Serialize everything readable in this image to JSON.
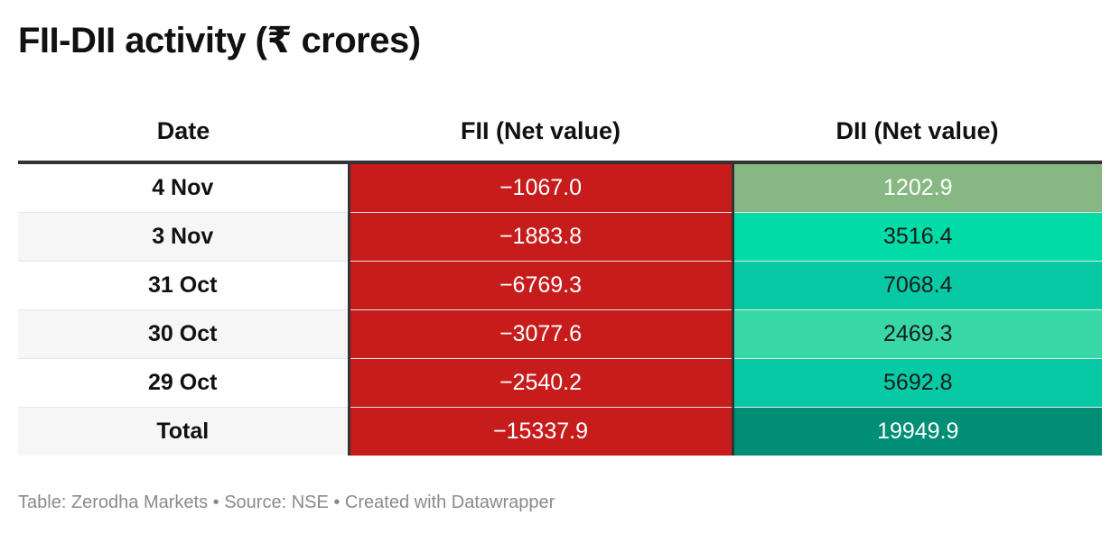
{
  "title": "FII-DII activity (₹ crores)",
  "source": "Table: Zerodha Markets • Source: NSE • Created with Datawrapper",
  "colors": {
    "fii_bg": "#c71c1c",
    "dii_light": "#87b883",
    "dii_bright": "#00dba7",
    "dii_mid": "#06caa6",
    "dii_pale": "#38d8a6",
    "dii_dark": "#008e76"
  },
  "chart_data": {
    "type": "table",
    "title": "FII-DII activity (₹ crores)",
    "columns": [
      "Date",
      "FII (Net value)",
      "DII (Net value)"
    ],
    "rows": [
      {
        "date": "4 Nov",
        "fii": "−1067.0",
        "dii": "1202.9",
        "fii_color": "#c71c1c",
        "dii_color": "#87b883",
        "dii_text": "#ffffff"
      },
      {
        "date": "3 Nov",
        "fii": "−1883.8",
        "dii": "3516.4",
        "fii_color": "#c71c1c",
        "dii_color": "#00dba7",
        "dii_text": "#1a1a1a"
      },
      {
        "date": "31 Oct",
        "fii": "−6769.3",
        "dii": "7068.4",
        "fii_color": "#c71c1c",
        "dii_color": "#06caa6",
        "dii_text": "#1a1a1a"
      },
      {
        "date": "30 Oct",
        "fii": "−3077.6",
        "dii": "2469.3",
        "fii_color": "#c71c1c",
        "dii_color": "#38d8a6",
        "dii_text": "#1a1a1a"
      },
      {
        "date": "29 Oct",
        "fii": "−2540.2",
        "dii": "5692.8",
        "fii_color": "#c71c1c",
        "dii_color": "#06caa6",
        "dii_text": "#1a1a1a"
      },
      {
        "date": "Total",
        "fii": "−15337.9",
        "dii": "19949.9",
        "fii_color": "#c71c1c",
        "dii_color": "#008e76",
        "dii_text": "#ffffff"
      }
    ]
  }
}
